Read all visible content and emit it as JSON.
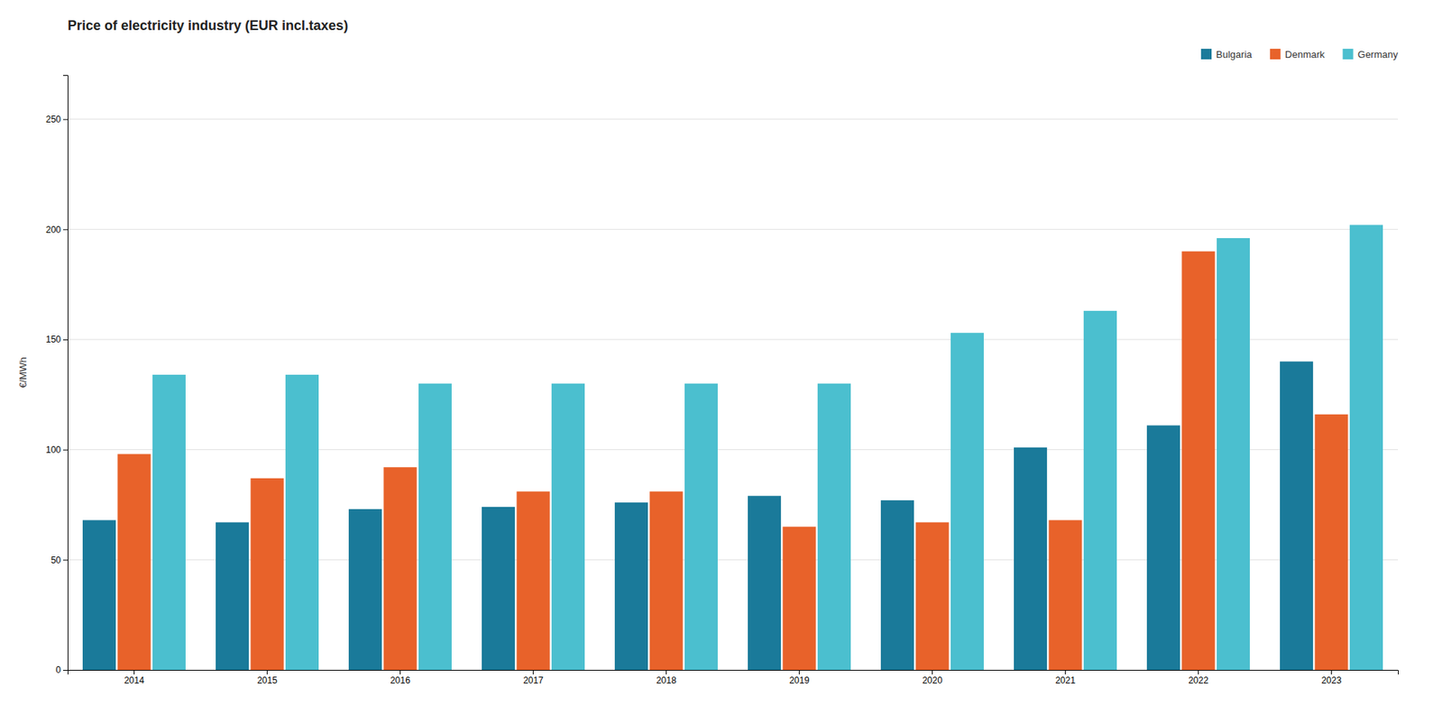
{
  "chart_data": {
    "type": "bar",
    "title": "Price of electricity industry (EUR incl.taxes)",
    "ylabel": "€/MWh",
    "categories": [
      "2014",
      "2015",
      "2016",
      "2017",
      "2018",
      "2019",
      "2020",
      "2021",
      "2022",
      "2023"
    ],
    "series": [
      {
        "name": "Bulgaria",
        "color": "#1a7a9a",
        "values": [
          68,
          67,
          73,
          74,
          76,
          79,
          77,
          101,
          111,
          140
        ]
      },
      {
        "name": "Denmark",
        "color": "#e8622a",
        "values": [
          98,
          87,
          92,
          81,
          81,
          65,
          67,
          68,
          190,
          116
        ]
      },
      {
        "name": "Germany",
        "color": "#4bbfcf",
        "values": [
          134,
          134,
          130,
          130,
          130,
          130,
          153,
          163,
          196,
          202
        ]
      }
    ],
    "ylim": [
      0,
      270
    ],
    "yticks": [
      0,
      50,
      100,
      150,
      200,
      250
    ],
    "grid": true,
    "legend": "upper right"
  }
}
